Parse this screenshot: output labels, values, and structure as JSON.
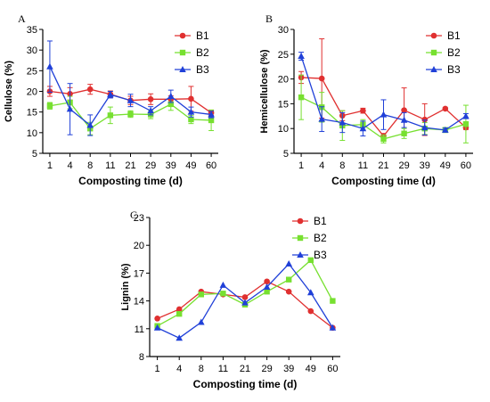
{
  "series_styles": [
    {
      "name": "B1",
      "color": "#e03030",
      "marker": "circle"
    },
    {
      "name": "B2",
      "color": "#77e030",
      "marker": "square"
    },
    {
      "name": "B3",
      "color": "#2040d8",
      "marker": "triangle"
    }
  ],
  "chart_data": [
    {
      "panel": "A",
      "type": "line",
      "title": "",
      "xlabel": "Composting time (d)",
      "ylabel": "Cellulose (%)",
      "categories": [
        "1",
        "4",
        "8",
        "11",
        "21",
        "29",
        "39",
        "49",
        "60"
      ],
      "ylim": [
        5,
        35
      ],
      "yticks": [
        5,
        10,
        15,
        20,
        25,
        30,
        35
      ],
      "grid": false,
      "legend": "top-right",
      "series": [
        {
          "name": "B1",
          "values": [
            20.0,
            19.4,
            20.5,
            19.3,
            17.8,
            18.1,
            18.1,
            18.2,
            14.8
          ],
          "err": [
            1.2,
            1.5,
            1.2,
            0.8,
            1.0,
            1.3,
            0.8,
            3.0,
            0.6
          ]
        },
        {
          "name": "B2",
          "values": [
            16.5,
            17.3,
            11.0,
            14.2,
            14.5,
            14.4,
            16.9,
            13.2,
            13.0
          ],
          "err": [
            0.8,
            1.5,
            1.5,
            2.0,
            0.8,
            1.0,
            1.5,
            1.0,
            2.5
          ]
        },
        {
          "name": "B3",
          "values": [
            26.0,
            15.7,
            11.8,
            19.2,
            17.8,
            15.3,
            18.8,
            15.0,
            14.4
          ],
          "err": [
            6.2,
            6.2,
            2.5,
            0.8,
            1.5,
            1.0,
            1.5,
            1.2,
            0.8
          ]
        }
      ]
    },
    {
      "panel": "B",
      "type": "line",
      "title": "",
      "xlabel": "Composting time (d)",
      "ylabel": "Hemicellulose (%)",
      "categories": [
        "1",
        "4",
        "8",
        "11",
        "21",
        "29",
        "39",
        "49",
        "60"
      ],
      "ylim": [
        5,
        30
      ],
      "yticks": [
        5,
        10,
        15,
        20,
        25,
        30
      ],
      "grid": false,
      "legend": "top-right",
      "series": [
        {
          "name": "B1",
          "values": [
            20.3,
            20.1,
            12.6,
            13.6,
            8.5,
            13.7,
            11.8,
            14.0,
            10.2
          ],
          "err": [
            1.2,
            8.0,
            1.0,
            0.5,
            0.5,
            4.5,
            3.2,
            0.2,
            0.4
          ]
        },
        {
          "name": "B2",
          "values": [
            16.3,
            14.3,
            10.6,
            10.8,
            7.9,
            9.0,
            10.0,
            9.7,
            10.9
          ],
          "err": [
            4.5,
            3.0,
            3.0,
            1.0,
            0.8,
            1.0,
            1.2,
            0.5,
            3.8
          ]
        },
        {
          "name": "B3",
          "values": [
            24.6,
            11.9,
            11.2,
            10.0,
            12.8,
            11.7,
            10.2,
            9.7,
            12.5
          ],
          "err": [
            0.8,
            2.5,
            2.0,
            1.5,
            3.0,
            1.5,
            1.5,
            0.4,
            0.5
          ]
        }
      ]
    },
    {
      "panel": "C",
      "type": "line",
      "title": "",
      "xlabel": "Composting time (d)",
      "ylabel": "Lignin (%)",
      "categories": [
        "1",
        "4",
        "8",
        "11",
        "21",
        "29",
        "39",
        "49",
        "60"
      ],
      "ylim": [
        8,
        23
      ],
      "yticks": [
        8,
        11,
        14,
        17,
        20,
        23
      ],
      "grid": false,
      "legend": "top-right",
      "series": [
        {
          "name": "B1",
          "values": [
            12.1,
            13.1,
            15.0,
            14.7,
            14.4,
            16.1,
            15.0,
            12.9,
            11.1
          ]
        },
        {
          "name": "B2",
          "values": [
            11.3,
            12.6,
            14.7,
            14.8,
            13.6,
            15.0,
            16.3,
            18.4,
            14.0
          ]
        },
        {
          "name": "B3",
          "values": [
            11.1,
            10.0,
            11.7,
            15.7,
            13.8,
            15.5,
            18.0,
            14.9,
            11.1
          ]
        }
      ]
    }
  ]
}
